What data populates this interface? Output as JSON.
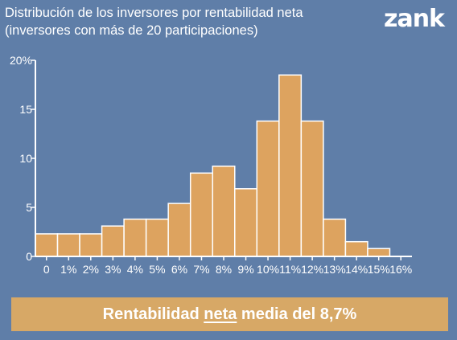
{
  "header": {
    "title_line1": "Distribución de los inversores por rentabilidad neta",
    "title_line2": "(inversores con más de 20 participaciones)",
    "logo": "zank"
  },
  "banner": {
    "prefix": "Rentabilidad",
    "emphasis": "neta",
    "suffix": "media del 8,7%"
  },
  "colors": {
    "background": "#5f7ea8",
    "bar_fill": "#dda35f",
    "bar_stroke": "#ffffff",
    "axis": "#ffffff",
    "banner": "#d7a866"
  },
  "chart_data": {
    "type": "bar",
    "title": "Distribución de los inversores por rentabilidad neta",
    "x_tick_labels": [
      "0",
      "1%",
      "2%",
      "3%",
      "4%",
      "5%",
      "6%",
      "7%",
      "8%",
      "9%",
      "10%",
      "11%",
      "12%",
      "13%",
      "14%",
      "15%",
      "16%"
    ],
    "bins": [
      {
        "from": -0.5,
        "to": 0.5,
        "value": 2.3
      },
      {
        "from": 0.5,
        "to": 1.5,
        "value": 2.3
      },
      {
        "from": 1.5,
        "to": 2.5,
        "value": 2.3
      },
      {
        "from": 2.5,
        "to": 3.5,
        "value": 3.1
      },
      {
        "from": 3.5,
        "to": 4.5,
        "value": 3.8
      },
      {
        "from": 4.5,
        "to": 5.5,
        "value": 3.8
      },
      {
        "from": 5.5,
        "to": 6.5,
        "value": 5.4
      },
      {
        "from": 6.5,
        "to": 7.5,
        "value": 8.5
      },
      {
        "from": 7.5,
        "to": 8.5,
        "value": 9.2
      },
      {
        "from": 8.5,
        "to": 9.5,
        "value": 6.9
      },
      {
        "from": 9.5,
        "to": 10.5,
        "value": 13.8
      },
      {
        "from": 10.5,
        "to": 11.5,
        "value": 18.5
      },
      {
        "from": 11.5,
        "to": 12.5,
        "value": 13.8
      },
      {
        "from": 12.5,
        "to": 13.5,
        "value": 3.8
      },
      {
        "from": 13.5,
        "to": 14.5,
        "value": 1.5
      },
      {
        "from": 14.5,
        "to": 15.5,
        "value": 0.8
      }
    ],
    "y_ticks": [
      {
        "value": 0,
        "label": "0"
      },
      {
        "value": 5,
        "label": "5"
      },
      {
        "value": 10,
        "label": "10"
      },
      {
        "value": 15,
        "label": "15"
      },
      {
        "value": 20,
        "label": "20%"
      }
    ],
    "ylim": [
      0,
      20
    ],
    "xlim": [
      -0.5,
      16.5
    ],
    "grid": false,
    "legend": "none"
  }
}
